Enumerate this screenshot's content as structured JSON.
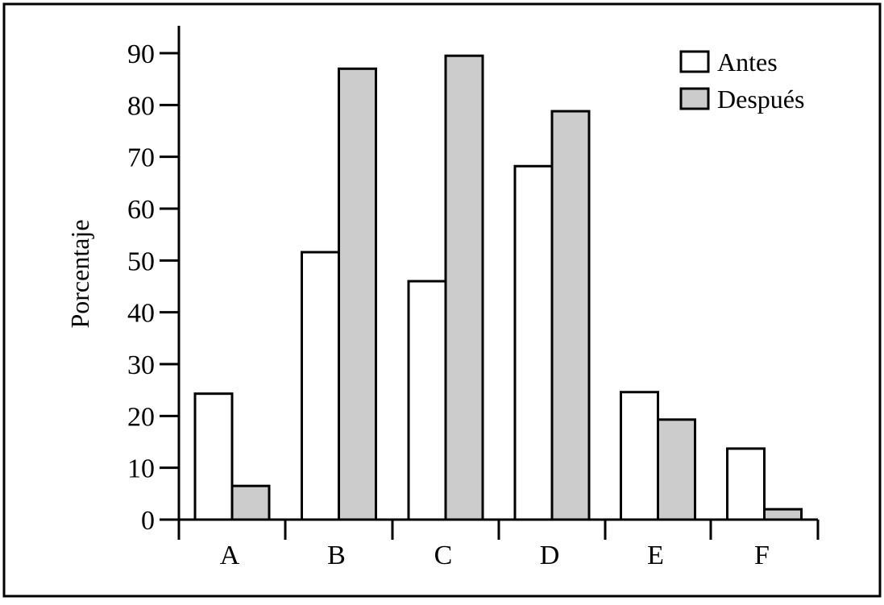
{
  "chart_data": {
    "type": "bar",
    "title": "",
    "xlabel": "",
    "ylabel": "Porcentaje",
    "categories": [
      "A",
      "B",
      "C",
      "D",
      "E",
      "F"
    ],
    "series": [
      {
        "name": "Antes",
        "values": [
          24.3,
          51.6,
          46.0,
          68.2,
          24.6,
          13.7
        ],
        "color": "#ffffff"
      },
      {
        "name": "Después",
        "values": [
          6.5,
          87.0,
          89.5,
          78.8,
          19.3,
          2.0
        ],
        "color": "#cccccc"
      }
    ],
    "ylim": [
      0,
      90
    ],
    "yticks": [
      "0",
      "10",
      "20",
      "30",
      "40",
      "50",
      "60",
      "70",
      "80",
      "90"
    ],
    "grid": false,
    "legend_position": "top-right"
  }
}
